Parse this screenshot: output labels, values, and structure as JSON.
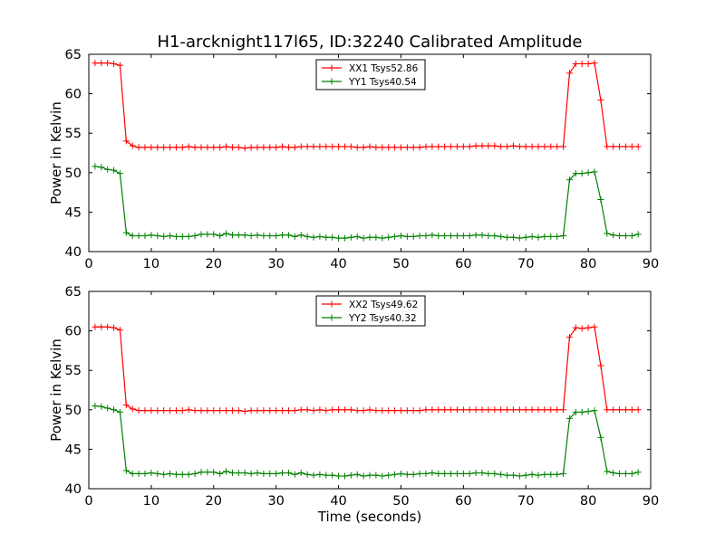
{
  "chart_data": [
    {
      "type": "line",
      "title": "H1-arcknight117l65, ID:32240 Calibrated Amplitude",
      "xlabel": "",
      "ylabel": "Power in Kelvin",
      "xlim": [
        0,
        90
      ],
      "ylim": [
        40,
        65
      ],
      "xticks": [
        0,
        10,
        20,
        30,
        40,
        50,
        60,
        70,
        80,
        90
      ],
      "yticks": [
        40,
        45,
        50,
        55,
        60,
        65
      ],
      "legend_position": "top-center",
      "grid": false,
      "x": [
        1,
        2,
        3,
        4,
        5,
        6,
        7,
        8,
        9,
        10,
        11,
        12,
        13,
        14,
        15,
        16,
        17,
        18,
        19,
        20,
        21,
        22,
        23,
        24,
        25,
        26,
        27,
        28,
        29,
        30,
        31,
        32,
        33,
        34,
        35,
        36,
        37,
        38,
        39,
        40,
        41,
        42,
        43,
        44,
        45,
        46,
        47,
        48,
        49,
        50,
        51,
        52,
        53,
        54,
        55,
        56,
        57,
        58,
        59,
        60,
        61,
        62,
        63,
        64,
        65,
        66,
        67,
        68,
        69,
        70,
        71,
        72,
        73,
        74,
        75,
        76,
        77,
        78,
        79,
        80,
        81,
        82,
        83,
        84,
        85,
        86,
        87,
        88
      ],
      "series": [
        {
          "name": "XX1 Tsys52.86",
          "color": "#ff0000",
          "values": [
            63.9,
            63.9,
            63.9,
            63.8,
            63.6,
            54.0,
            53.4,
            53.2,
            53.2,
            53.2,
            53.2,
            53.2,
            53.2,
            53.2,
            53.2,
            53.3,
            53.2,
            53.2,
            53.2,
            53.2,
            53.2,
            53.3,
            53.2,
            53.2,
            53.1,
            53.2,
            53.2,
            53.2,
            53.2,
            53.2,
            53.3,
            53.2,
            53.2,
            53.3,
            53.3,
            53.3,
            53.3,
            53.3,
            53.3,
            53.3,
            53.3,
            53.3,
            53.2,
            53.2,
            53.3,
            53.2,
            53.2,
            53.2,
            53.2,
            53.2,
            53.2,
            53.2,
            53.2,
            53.3,
            53.3,
            53.3,
            53.3,
            53.3,
            53.3,
            53.3,
            53.3,
            53.4,
            53.4,
            53.4,
            53.4,
            53.3,
            53.3,
            53.4,
            53.3,
            53.3,
            53.3,
            53.3,
            53.3,
            53.3,
            53.3,
            53.3,
            62.6,
            63.8,
            63.8,
            63.8,
            63.9,
            59.2,
            53.3,
            53.3,
            53.3,
            53.3,
            53.3,
            53.3
          ]
        },
        {
          "name": "YY1 Tsys40.54",
          "color": "#008000",
          "values": [
            50.8,
            50.7,
            50.4,
            50.3,
            49.9,
            42.4,
            42.0,
            42.0,
            42.0,
            42.1,
            42.0,
            41.9,
            42.0,
            41.9,
            41.9,
            41.9,
            42.0,
            42.2,
            42.2,
            42.2,
            42.0,
            42.3,
            42.1,
            42.1,
            42.1,
            42.0,
            42.1,
            42.0,
            42.0,
            42.0,
            42.1,
            42.1,
            41.9,
            42.1,
            41.9,
            41.8,
            41.9,
            41.8,
            41.8,
            41.7,
            41.7,
            41.8,
            41.9,
            41.7,
            41.8,
            41.8,
            41.7,
            41.8,
            41.9,
            42.0,
            41.9,
            41.9,
            42.0,
            42.0,
            42.1,
            42.0,
            42.0,
            42.0,
            42.0,
            42.0,
            42.0,
            42.1,
            42.1,
            42.0,
            42.0,
            41.9,
            41.8,
            41.8,
            41.7,
            41.8,
            41.9,
            41.8,
            41.9,
            41.9,
            41.9,
            42.0,
            49.1,
            49.9,
            49.9,
            50.0,
            50.1,
            46.6,
            42.3,
            42.1,
            42.0,
            42.0,
            42.0,
            42.2
          ]
        }
      ]
    },
    {
      "type": "line",
      "title": "",
      "xlabel": "Time (seconds)",
      "ylabel": "Power in Kelvin",
      "xlim": [
        0,
        90
      ],
      "ylim": [
        40,
        65
      ],
      "xticks": [
        0,
        10,
        20,
        30,
        40,
        50,
        60,
        70,
        80,
        90
      ],
      "yticks": [
        40,
        45,
        50,
        55,
        60,
        65
      ],
      "legend_position": "top-center",
      "grid": false,
      "x": [
        1,
        2,
        3,
        4,
        5,
        6,
        7,
        8,
        9,
        10,
        11,
        12,
        13,
        14,
        15,
        16,
        17,
        18,
        19,
        20,
        21,
        22,
        23,
        24,
        25,
        26,
        27,
        28,
        29,
        30,
        31,
        32,
        33,
        34,
        35,
        36,
        37,
        38,
        39,
        40,
        41,
        42,
        43,
        44,
        45,
        46,
        47,
        48,
        49,
        50,
        51,
        52,
        53,
        54,
        55,
        56,
        57,
        58,
        59,
        60,
        61,
        62,
        63,
        64,
        65,
        66,
        67,
        68,
        69,
        70,
        71,
        72,
        73,
        74,
        75,
        76,
        77,
        78,
        79,
        80,
        81,
        82,
        83,
        84,
        85,
        86,
        87,
        88
      ],
      "series": [
        {
          "name": "XX2 Tsys49.62",
          "color": "#ff0000",
          "values": [
            60.5,
            60.5,
            60.5,
            60.4,
            60.1,
            50.6,
            50.1,
            49.9,
            49.9,
            49.9,
            49.9,
            49.9,
            49.9,
            49.9,
            49.9,
            50.0,
            49.9,
            49.9,
            49.9,
            49.9,
            49.9,
            49.9,
            49.9,
            49.9,
            49.8,
            49.9,
            49.9,
            49.9,
            49.9,
            49.9,
            49.9,
            49.9,
            49.9,
            50.0,
            50.0,
            49.9,
            50.0,
            49.9,
            50.0,
            50.0,
            50.0,
            50.0,
            49.9,
            49.9,
            50.0,
            49.9,
            49.9,
            49.9,
            49.9,
            49.9,
            49.9,
            49.9,
            49.9,
            50.0,
            50.0,
            50.0,
            50.0,
            50.0,
            50.0,
            50.0,
            50.0,
            50.0,
            50.0,
            50.0,
            50.0,
            50.0,
            50.0,
            50.0,
            50.0,
            50.0,
            50.0,
            50.0,
            50.0,
            50.0,
            50.0,
            50.0,
            59.2,
            60.4,
            60.3,
            60.4,
            60.5,
            55.6,
            50.0,
            50.0,
            50.0,
            50.0,
            50.0,
            50.0
          ]
        },
        {
          "name": "YY2 Tsys40.32",
          "color": "#008000",
          "values": [
            50.5,
            50.4,
            50.2,
            50.0,
            49.7,
            42.3,
            41.9,
            41.9,
            41.9,
            42.0,
            41.9,
            41.8,
            41.9,
            41.8,
            41.8,
            41.8,
            41.9,
            42.1,
            42.1,
            42.1,
            41.9,
            42.2,
            42.0,
            42.0,
            42.0,
            41.9,
            42.0,
            41.9,
            41.9,
            41.9,
            42.0,
            42.0,
            41.8,
            42.0,
            41.8,
            41.7,
            41.8,
            41.7,
            41.7,
            41.6,
            41.6,
            41.7,
            41.8,
            41.6,
            41.7,
            41.7,
            41.6,
            41.7,
            41.8,
            41.9,
            41.8,
            41.8,
            41.9,
            41.9,
            42.0,
            41.9,
            41.9,
            41.9,
            41.9,
            41.9,
            41.9,
            42.0,
            42.0,
            41.9,
            41.9,
            41.8,
            41.7,
            41.7,
            41.6,
            41.7,
            41.8,
            41.7,
            41.8,
            41.8,
            41.8,
            41.9,
            48.9,
            49.7,
            49.7,
            49.8,
            49.9,
            46.5,
            42.2,
            42.0,
            41.9,
            41.9,
            41.9,
            42.1
          ]
        }
      ]
    }
  ]
}
